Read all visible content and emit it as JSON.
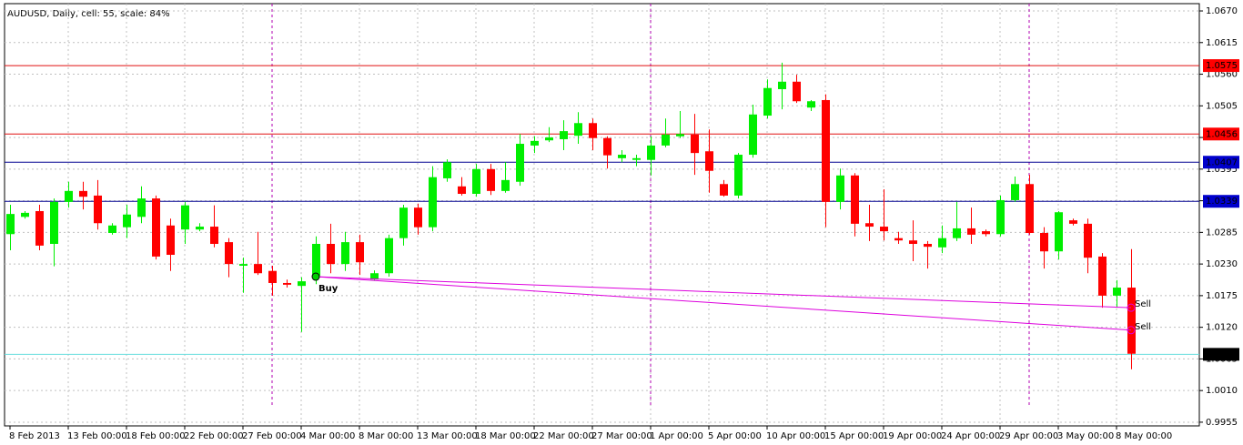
{
  "chart_data": {
    "type": "candlestick",
    "title": "AUDUSD, Daily, cell: 55, scale: 84%",
    "categories": [
      "8 Feb 2013",
      null,
      null,
      null,
      "13 Feb 00:00",
      null,
      null,
      null,
      "18 Feb 00:00",
      null,
      null,
      null,
      "22 Feb 00:00",
      null,
      null,
      null,
      "27 Feb 00:00",
      null,
      null,
      null,
      "4 Mar 00:00",
      null,
      null,
      null,
      "8 Mar 00:00",
      null,
      null,
      null,
      "13 Mar 00:00",
      null,
      null,
      null,
      "18 Mar 00:00",
      null,
      null,
      null,
      "22 Mar 00:00",
      null,
      null,
      null,
      "27 Mar 00:00",
      null,
      null,
      null,
      "1 Apr 00:00",
      null,
      null,
      null,
      "5 Apr 00:00",
      null,
      null,
      null,
      "10 Apr 00:00",
      null,
      null,
      null,
      "15 Apr 00:00",
      null,
      null,
      null,
      "19 Apr 00:00",
      null,
      null,
      null,
      "24 Apr 00:00",
      null,
      null,
      null,
      "29 Apr 00:00",
      null,
      null,
      null,
      "3 May 00:00",
      null,
      null,
      null,
      "8 May 00:00",
      null
    ],
    "open": [
      1.0282,
      1.0312,
      1.0322,
      1.0265,
      1.0338,
      1.0357,
      1.0349,
      1.0284,
      1.0294,
      1.0312,
      1.0344,
      1.0297,
      1.029,
      1.029,
      1.0295,
      1.0268,
      1.0227,
      1.023,
      1.0218,
      1.0197,
      1.0192,
      1.021,
      1.0265,
      1.023,
      1.0268,
      1.0203,
      1.0214,
      1.0275,
      1.0328,
      1.0294,
      1.0379,
      1.0365,
      1.0352,
      1.0395,
      1.0357,
      1.0373,
      1.0436,
      1.0445,
      1.0447,
      1.0453,
      1.0475,
      1.0449,
      1.0414,
      1.0411,
      1.0411,
      1.0436,
      1.0452,
      1.0455,
      1.0426,
      1.0369,
      1.0349,
      1.042,
      1.0488,
      1.0534,
      1.0547,
      1.0502,
      1.0515,
      1.0338,
      1.0384,
      1.0301,
      1.0295,
      1.0275,
      1.0271,
      1.0265,
      1.0259,
      1.0275,
      1.0292,
      1.0287,
      1.0282,
      1.0341,
      1.0369,
      1.0284,
      1.0252,
      1.0306,
      1.03,
      1.0243,
      1.0175,
      1.0189
    ],
    "high": [
      1.0333,
      1.0322,
      1.0333,
      1.0344,
      1.0373,
      1.0373,
      1.0376,
      1.0301,
      1.0333,
      1.0365,
      1.0349,
      1.0309,
      1.0338,
      1.0301,
      1.0332,
      1.0275,
      1.0241,
      1.0286,
      1.0227,
      1.0203,
      1.0207,
      1.0278,
      1.03,
      1.0286,
      1.0281,
      1.0219,
      1.0281,
      1.0333,
      1.0335,
      1.04,
      1.0412,
      1.0381,
      1.0404,
      1.0404,
      1.0407,
      1.0456,
      1.0452,
      1.0468,
      1.048,
      1.0494,
      1.0483,
      1.0452,
      1.0428,
      1.042,
      1.0452,
      1.0483,
      1.0496,
      1.0491,
      1.0464,
      1.0376,
      1.0423,
      1.0507,
      1.0551,
      1.058,
      1.0559,
      1.0515,
      1.0525,
      1.0396,
      1.0388,
      1.0333,
      1.036,
      1.0286,
      1.0306,
      1.027,
      1.0297,
      1.0338,
      1.0328,
      1.029,
      1.0349,
      1.0382,
      1.0385,
      1.0294,
      1.0322,
      1.0309,
      1.0309,
      1.0249,
      1.0202,
      1.0256
    ],
    "low": [
      1.0254,
      1.0309,
      1.0254,
      1.0226,
      1.0328,
      1.0325,
      1.029,
      1.0281,
      1.0275,
      1.0301,
      1.0238,
      1.0218,
      1.0265,
      1.0287,
      1.0259,
      1.0207,
      1.018,
      1.0211,
      1.0175,
      1.0189,
      1.0112,
      1.0195,
      1.0214,
      1.0218,
      1.0211,
      1.0202,
      1.0208,
      1.0262,
      1.0281,
      1.0287,
      1.0373,
      1.0349,
      1.0347,
      1.035,
      1.0354,
      1.0366,
      1.0423,
      1.0442,
      1.0428,
      1.0439,
      1.0428,
      1.0396,
      1.0407,
      1.04,
      1.0384,
      1.0433,
      1.0449,
      1.0385,
      1.0354,
      1.0347,
      1.0344,
      1.0415,
      1.0483,
      1.0499,
      1.051,
      1.0496,
      1.0294,
      1.0325,
      1.0278,
      1.027,
      1.0271,
      1.0265,
      1.0235,
      1.0222,
      1.0249,
      1.027,
      1.0265,
      1.0278,
      1.0278,
      1.0338,
      1.0281,
      1.0222,
      1.0238,
      1.0297,
      1.0214,
      1.0154,
      1.0154,
      1.0047
    ],
    "close": [
      1.0317,
      1.0319,
      1.0262,
      1.0338,
      1.0357,
      1.0347,
      1.0301,
      1.0297,
      1.0316,
      1.0344,
      1.0243,
      1.0246,
      1.0332,
      1.0295,
      1.0265,
      1.023,
      1.023,
      1.0214,
      1.0197,
      1.0194,
      1.02,
      1.0265,
      1.023,
      1.0268,
      1.0233,
      1.0214,
      1.0275,
      1.0328,
      1.0294,
      1.0381,
      1.0407,
      1.0352,
      1.0395,
      1.0357,
      1.0376,
      1.0439,
      1.0444,
      1.045,
      1.0461,
      1.0475,
      1.0449,
      1.0419,
      1.042,
      1.0414,
      1.0436,
      1.0455,
      1.0456,
      1.0423,
      1.0392,
      1.0349,
      1.042,
      1.049,
      1.0536,
      1.0547,
      1.0513,
      1.0513,
      1.0338,
      1.0384,
      1.03,
      1.0295,
      1.0287,
      1.0271,
      1.0265,
      1.026,
      1.0275,
      1.0292,
      1.0281,
      1.0282,
      1.0341,
      1.0369,
      1.0284,
      1.0252,
      1.032,
      1.03,
      1.0241,
      1.0175,
      1.0189,
      1.0074
    ],
    "up_color": "#00ee00",
    "down_color": "#ff0000",
    "ylim": [
      0.995,
      1.068
    ],
    "yticks": [
      {
        "value": 1.067,
        "label": "1.0670"
      },
      1.0615,
      {
        "value": 1.056,
        "label": "1.0560"
      },
      1.0505,
      {
        "value": 1.045,
        "label": "1.0450"
      },
      1.0395,
      {
        "value": 1.034,
        "label": "1.0340"
      },
      1.0285,
      {
        "value": 1.023,
        "label": "1.0230"
      },
      1.0175,
      {
        "value": 1.012,
        "label": "1.0120"
      },
      1.0065,
      {
        "value": 1.001,
        "label": "1.0010"
      },
      0.9955
    ],
    "grid": true,
    "levels": [
      {
        "value": 1.0575,
        "color": "#e01010",
        "box_color": "#ff0000"
      },
      {
        "value": 1.0456,
        "color": "#e01010",
        "box_color": "#ff0000"
      },
      {
        "value": 1.0407,
        "color": "#000090",
        "box_color": "#0000cc"
      },
      {
        "value": 1.0339,
        "color": "#000090",
        "box_color": "#0000cc"
      },
      {
        "value": 1.0073,
        "color": "#66dddd",
        "box_color": "#000000"
      }
    ],
    "trendlines": [
      {
        "start_index": 21,
        "start": 1.0208,
        "end_index": 77,
        "end": 1.0154,
        "color": "#dd00dd"
      },
      {
        "start_index": 21,
        "start": 1.0208,
        "end_index": 77,
        "end": 1.0115,
        "color": "#dd00dd"
      }
    ],
    "annotations": [
      {
        "text": "Buy",
        "index": 21,
        "value": 1.0208,
        "color": "#000080"
      },
      {
        "text": "Sell",
        "index": 77,
        "value": 1.0154,
        "color": "#dd00dd"
      },
      {
        "text": "Sell",
        "index": 77,
        "value": 1.0115,
        "color": "#dd00dd"
      }
    ]
  }
}
